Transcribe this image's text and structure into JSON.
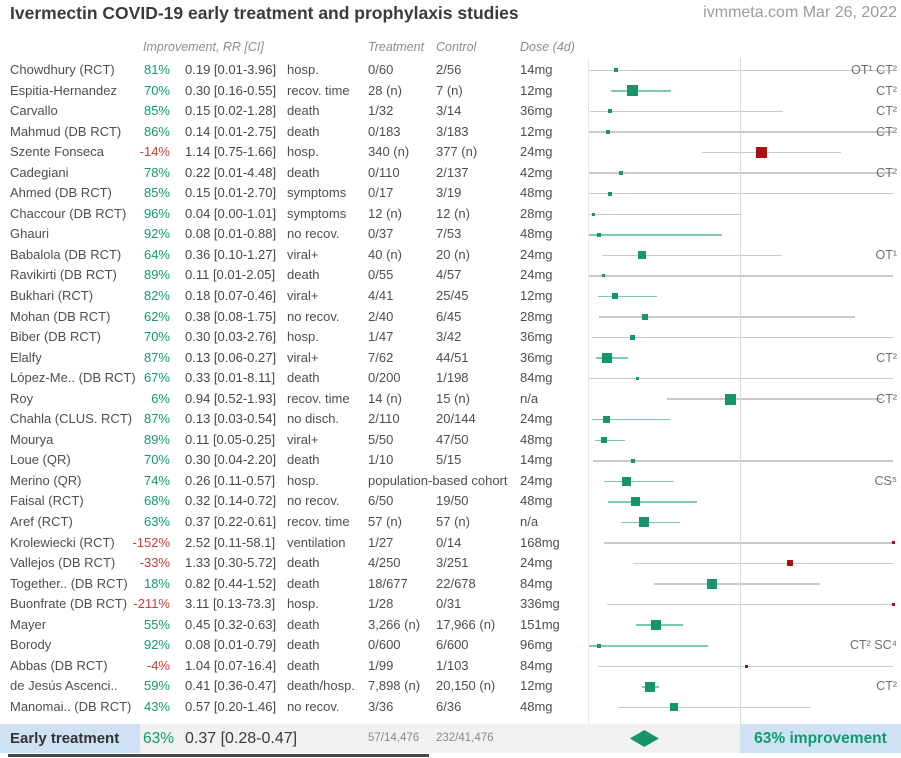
{
  "header": {
    "title": "Ivermectin COVID-19 early treatment and prophylaxis studies",
    "source": "ivmmeta.com Mar 26, 2022"
  },
  "columns": {
    "improvement": "Improvement, RR [CI]",
    "treatment": "Treatment",
    "control": "Control",
    "dose": "Dose (4d)"
  },
  "colors": {
    "green_text": "#0f9b6e",
    "red_text": "#cc3d33",
    "marker_green": "#17956a",
    "marker_red": "#a81111",
    "ci_green": "#7dc9ae",
    "ci_gray": "#c9c9c9",
    "highlight_blue": "#cfe2f3",
    "summary_bg": "#f1f1ef"
  },
  "chart_data": {
    "type": "forest",
    "x_scale": "linear relative risk",
    "x_reference": 1.0,
    "x_range": [
      0.02,
      2.0
    ],
    "marker_rule": "square sized by study weight; green RR<1, red RR>=1; CI line green when upper CI<1 else gray; values beyond range clipped to plot edge",
    "rows": [
      {
        "study": "Chowdhury (RCT)",
        "imp": "81%",
        "rr": 0.19,
        "lo": 0.01,
        "hi": 3.96,
        "rr_text": "0.19 [0.01-3.96]",
        "outcome": "hosp.",
        "treat": "0/60",
        "ctrl": "2/56",
        "dose": "14mg",
        "note": "OT¹ CT²",
        "size": 4
      },
      {
        "study": "Espitia-Hernandez",
        "imp": "70%",
        "rr": 0.3,
        "lo": 0.16,
        "hi": 0.55,
        "rr_text": "0.30 [0.16-0.55]",
        "outcome": "recov. time",
        "treat": "28 (n)",
        "ctrl": "7 (n)",
        "dose": "12mg",
        "note": "CT²",
        "size": 11
      },
      {
        "study": "Carvallo",
        "imp": "85%",
        "rr": 0.15,
        "lo": 0.02,
        "hi": 1.28,
        "rr_text": "0.15 [0.02-1.28]",
        "outcome": "death",
        "treat": "1/32",
        "ctrl": "3/14",
        "dose": "36mg",
        "note": "CT²",
        "size": 4
      },
      {
        "study": "Mahmud (DB RCT)",
        "imp": "86%",
        "rr": 0.14,
        "lo": 0.01,
        "hi": 2.75,
        "rr_text": "0.14 [0.01-2.75]",
        "outcome": "death",
        "treat": "0/183",
        "ctrl": "3/183",
        "dose": "12mg",
        "note": "CT²",
        "size": 4
      },
      {
        "study": "Szente Fonseca",
        "imp": "-14%",
        "rr": 1.14,
        "lo": 0.75,
        "hi": 1.66,
        "rr_text": "1.14 [0.75-1.66]",
        "outcome": "hosp.",
        "treat": "340 (n)",
        "ctrl": "377 (n)",
        "dose": "24mg",
        "note": "",
        "size": 11
      },
      {
        "study": "Cadegiani",
        "imp": "78%",
        "rr": 0.22,
        "lo": 0.01,
        "hi": 4.48,
        "rr_text": "0.22 [0.01-4.48]",
        "outcome": "death",
        "treat": "0/110",
        "ctrl": "2/137",
        "dose": "42mg",
        "note": "CT²",
        "size": 4
      },
      {
        "study": "Ahmed (DB RCT)",
        "imp": "85%",
        "rr": 0.15,
        "lo": 0.01,
        "hi": 2.7,
        "rr_text": "0.15 [0.01-2.70]",
        "outcome": "symptoms",
        "treat": "0/17",
        "ctrl": "3/19",
        "dose": "48mg",
        "note": "",
        "size": 4
      },
      {
        "study": "Chaccour (DB RCT)",
        "imp": "96%",
        "rr": 0.04,
        "lo": 0.0,
        "hi": 1.01,
        "rr_text": "0.04 [0.00-1.01]",
        "outcome": "symptoms",
        "treat": "12 (n)",
        "ctrl": "12 (n)",
        "dose": "28mg",
        "note": "",
        "size": 3
      },
      {
        "study": "Ghauri",
        "imp": "92%",
        "rr": 0.08,
        "lo": 0.01,
        "hi": 0.88,
        "rr_text": "0.08 [0.01-0.88]",
        "outcome": "no recov.",
        "treat": "0/37",
        "ctrl": "7/53",
        "dose": "48mg",
        "note": "",
        "size": 4
      },
      {
        "study": "Babalola (DB RCT)",
        "imp": "64%",
        "rr": 0.36,
        "lo": 0.1,
        "hi": 1.27,
        "rr_text": "0.36 [0.10-1.27]",
        "outcome": "viral+",
        "treat": "40 (n)",
        "ctrl": "20 (n)",
        "dose": "24mg",
        "note": "OT¹",
        "size": 8
      },
      {
        "study": "Ravikirti (DB RCT)",
        "imp": "89%",
        "rr": 0.11,
        "lo": 0.01,
        "hi": 2.05,
        "rr_text": "0.11 [0.01-2.05]",
        "outcome": "death",
        "treat": "0/55",
        "ctrl": "4/57",
        "dose": "24mg",
        "note": "",
        "size": 3
      },
      {
        "study": "Bukhari (RCT)",
        "imp": "82%",
        "rr": 0.18,
        "lo": 0.07,
        "hi": 0.46,
        "rr_text": "0.18 [0.07-0.46]",
        "outcome": "viral+",
        "treat": "4/41",
        "ctrl": "25/45",
        "dose": "12mg",
        "note": "",
        "size": 6
      },
      {
        "study": "Mohan (DB RCT)",
        "imp": "62%",
        "rr": 0.38,
        "lo": 0.08,
        "hi": 1.75,
        "rr_text": "0.38 [0.08-1.75]",
        "outcome": "no recov.",
        "treat": "2/40",
        "ctrl": "6/45",
        "dose": "28mg",
        "note": "",
        "size": 6
      },
      {
        "study": "Biber (DB RCT)",
        "imp": "70%",
        "rr": 0.3,
        "lo": 0.03,
        "hi": 2.76,
        "rr_text": "0.30 [0.03-2.76]",
        "outcome": "hosp.",
        "treat": "1/47",
        "ctrl": "3/42",
        "dose": "36mg",
        "note": "",
        "size": 5
      },
      {
        "study": "Elalfy",
        "imp": "87%",
        "rr": 0.13,
        "lo": 0.06,
        "hi": 0.27,
        "rr_text": "0.13 [0.06-0.27]",
        "outcome": "viral+",
        "treat": "7/62",
        "ctrl": "44/51",
        "dose": "36mg",
        "note": "CT²",
        "size": 10
      },
      {
        "study": "López-Me.. (DB RCT)",
        "imp": "67%",
        "rr": 0.33,
        "lo": 0.01,
        "hi": 8.11,
        "rr_text": "0.33 [0.01-8.11]",
        "outcome": "death",
        "treat": "0/200",
        "ctrl": "1/198",
        "dose": "84mg",
        "note": "",
        "size": 3
      },
      {
        "study": "Roy",
        "imp": "6%",
        "rr": 0.94,
        "lo": 0.52,
        "hi": 1.93,
        "rr_text": "0.94 [0.52-1.93]",
        "outcome": "recov. time",
        "treat": "14 (n)",
        "ctrl": "15 (n)",
        "dose": "n/a",
        "note": "CT²",
        "size": 11
      },
      {
        "study": "Chahla (CLUS. RCT)",
        "imp": "87%",
        "rr": 0.13,
        "lo": 0.03,
        "hi": 0.54,
        "rr_text": "0.13 [0.03-0.54]",
        "outcome": "no disch.",
        "treat": "2/110",
        "ctrl": "20/144",
        "dose": "24mg",
        "note": "",
        "size": 7
      },
      {
        "study": "Mourya",
        "imp": "89%",
        "rr": 0.11,
        "lo": 0.05,
        "hi": 0.25,
        "rr_text": "0.11 [0.05-0.25]",
        "outcome": "viral+",
        "treat": "5/50",
        "ctrl": "47/50",
        "dose": "48mg",
        "note": "",
        "size": 6
      },
      {
        "study": "Loue (QR)",
        "imp": "70%",
        "rr": 0.3,
        "lo": 0.04,
        "hi": 2.2,
        "rr_text": "0.30 [0.04-2.20]",
        "outcome": "death",
        "treat": "1/10",
        "ctrl": "5/15",
        "dose": "14mg",
        "note": "",
        "size": 4
      },
      {
        "study": "Merino (QR)",
        "imp": "74%",
        "rr": 0.26,
        "lo": 0.11,
        "hi": 0.57,
        "rr_text": "0.26 [0.11-0.57]",
        "outcome": "hosp.",
        "treat": "population-based cohort",
        "ctrl": "",
        "dose": "24mg",
        "note": "CS⁵",
        "size": 9
      },
      {
        "study": "Faisal (RCT)",
        "imp": "68%",
        "rr": 0.32,
        "lo": 0.14,
        "hi": 0.72,
        "rr_text": "0.32 [0.14-0.72]",
        "outcome": "no recov.",
        "treat": "6/50",
        "ctrl": "19/50",
        "dose": "48mg",
        "note": "",
        "size": 9
      },
      {
        "study": "Aref (RCT)",
        "imp": "63%",
        "rr": 0.37,
        "lo": 0.22,
        "hi": 0.61,
        "rr_text": "0.37 [0.22-0.61]",
        "outcome": "recov. time",
        "treat": "57 (n)",
        "ctrl": "57 (n)",
        "dose": "n/a",
        "note": "",
        "size": 10
      },
      {
        "study": "Krolewiecki (RCT)",
        "imp": "-152%",
        "rr": 2.52,
        "lo": 0.11,
        "hi": 58.1,
        "rr_text": "2.52 [0.11-58.1]",
        "outcome": "ventilation",
        "treat": "1/27",
        "ctrl": "0/14",
        "dose": "168mg",
        "note": "",
        "size": 3
      },
      {
        "study": "Vallejos (DB RCT)",
        "imp": "-33%",
        "rr": 1.33,
        "lo": 0.3,
        "hi": 5.72,
        "rr_text": "1.33 [0.30-5.72]",
        "outcome": "death",
        "treat": "4/250",
        "ctrl": "3/251",
        "dose": "24mg",
        "note": "",
        "size": 6
      },
      {
        "study": "Together.. (DB RCT)",
        "imp": "18%",
        "rr": 0.82,
        "lo": 0.44,
        "hi": 1.52,
        "rr_text": "0.82 [0.44-1.52]",
        "outcome": "death",
        "treat": "18/677",
        "ctrl": "22/678",
        "dose": "84mg",
        "note": "",
        "size": 10
      },
      {
        "study": "Buonfrate (DB RCT)",
        "imp": "-211%",
        "rr": 3.11,
        "lo": 0.13,
        "hi": 73.3,
        "rr_text": "3.11 [0.13-73.3]",
        "outcome": "hosp.",
        "treat": "1/28",
        "ctrl": "0/31",
        "dose": "336mg",
        "note": "",
        "size": 3
      },
      {
        "study": "Mayer",
        "imp": "55%",
        "rr": 0.45,
        "lo": 0.32,
        "hi": 0.63,
        "rr_text": "0.45 [0.32-0.63]",
        "outcome": "death",
        "treat": "3,266 (n)",
        "ctrl": "17,966 (n)",
        "dose": "151mg",
        "note": "",
        "size": 10
      },
      {
        "study": "Borody",
        "imp": "92%",
        "rr": 0.08,
        "lo": 0.01,
        "hi": 0.79,
        "rr_text": "0.08 [0.01-0.79]",
        "outcome": "death",
        "treat": "0/600",
        "ctrl": "6/600",
        "dose": "96mg",
        "note": "CT² SC⁴",
        "size": 4
      },
      {
        "study": "Abbas (DB RCT)",
        "imp": "-4%",
        "rr": 1.04,
        "lo": 0.07,
        "hi": 16.4,
        "rr_text": "1.04 [0.07-16.4]",
        "outcome": "death",
        "treat": "1/99",
        "ctrl": "1/103",
        "dose": "84mg",
        "note": "",
        "size": 3
      },
      {
        "study": "de Jesús Ascenci..",
        "imp": "59%",
        "rr": 0.41,
        "lo": 0.36,
        "hi": 0.47,
        "rr_text": "0.41 [0.36-0.47]",
        "outcome": "death/hosp.",
        "treat": "7,898 (n)",
        "ctrl": "20,150 (n)",
        "dose": "12mg",
        "note": "CT²",
        "size": 10
      },
      {
        "study": "Manomai.. (DB RCT)",
        "imp": "43%",
        "rr": 0.57,
        "lo": 0.2,
        "hi": 1.46,
        "rr_text": "0.57 [0.20-1.46]",
        "outcome": "no recov.",
        "treat": "3/36",
        "ctrl": "6/36",
        "dose": "48mg",
        "note": "",
        "size": 8
      }
    ],
    "summary": {
      "label": "Early treatment",
      "improvement": "63%",
      "rr": 0.37,
      "lo": 0.28,
      "hi": 0.47,
      "rr_text": "0.37 [0.28-0.47]",
      "treatment": "57/14,476",
      "control": "232/41,476",
      "result": "63% improvement"
    }
  }
}
